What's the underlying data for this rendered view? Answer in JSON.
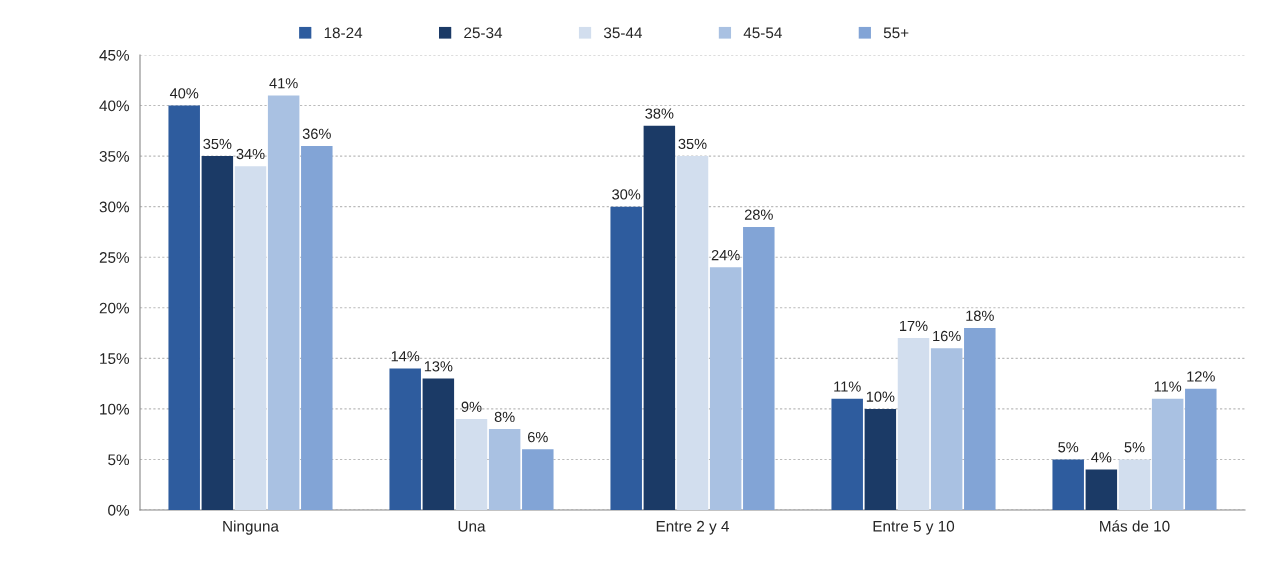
{
  "chart_data": {
    "type": "bar",
    "categories": [
      "Ninguna",
      "Una",
      "Entre 2 y 4",
      "Entre 5 y 10",
      "Más de 10"
    ],
    "series": [
      {
        "name": "18-24",
        "color": "#2e5c9e",
        "values": [
          40,
          14,
          30,
          11,
          5
        ],
        "value_labels": [
          "40%",
          "14%",
          "30%",
          "11%",
          "5%"
        ]
      },
      {
        "name": "25-34",
        "color": "#1b3a66",
        "values": [
          35,
          13,
          38,
          10,
          4
        ],
        "value_labels": [
          "35%",
          "13%",
          "38%",
          "10%",
          "4%"
        ]
      },
      {
        "name": "35-44",
        "color": "#d2deee",
        "values": [
          34,
          9,
          35,
          17,
          5
        ],
        "value_labels": [
          "34%",
          "9%",
          "35%",
          "17%",
          "5%"
        ]
      },
      {
        "name": "45-54",
        "color": "#a9c1e2",
        "values": [
          41,
          8,
          24,
          16,
          11
        ],
        "value_labels": [
          "41%",
          "8%",
          "24%",
          "16%",
          "11%"
        ]
      },
      {
        "name": "55+",
        "color": "#82a4d6",
        "values": [
          36,
          6,
          28,
          18,
          12
        ],
        "value_labels": [
          "36%",
          "6%",
          "28%",
          "18%",
          "12%"
        ]
      }
    ],
    "ylim": [
      0,
      45
    ],
    "yticks": [
      {
        "value": 0,
        "label": "0%"
      },
      {
        "value": 5,
        "label": "5%"
      },
      {
        "value": 10,
        "label": "10%"
      },
      {
        "value": 15,
        "label": "15%"
      },
      {
        "value": 20,
        "label": "20%"
      },
      {
        "value": 25,
        "label": "25%"
      },
      {
        "value": 30,
        "label": "30%"
      },
      {
        "value": 35,
        "label": "35%"
      },
      {
        "value": 40,
        "label": "40%"
      },
      {
        "value": 45,
        "label": "45%"
      }
    ],
    "grid": "y",
    "legend": "top"
  }
}
